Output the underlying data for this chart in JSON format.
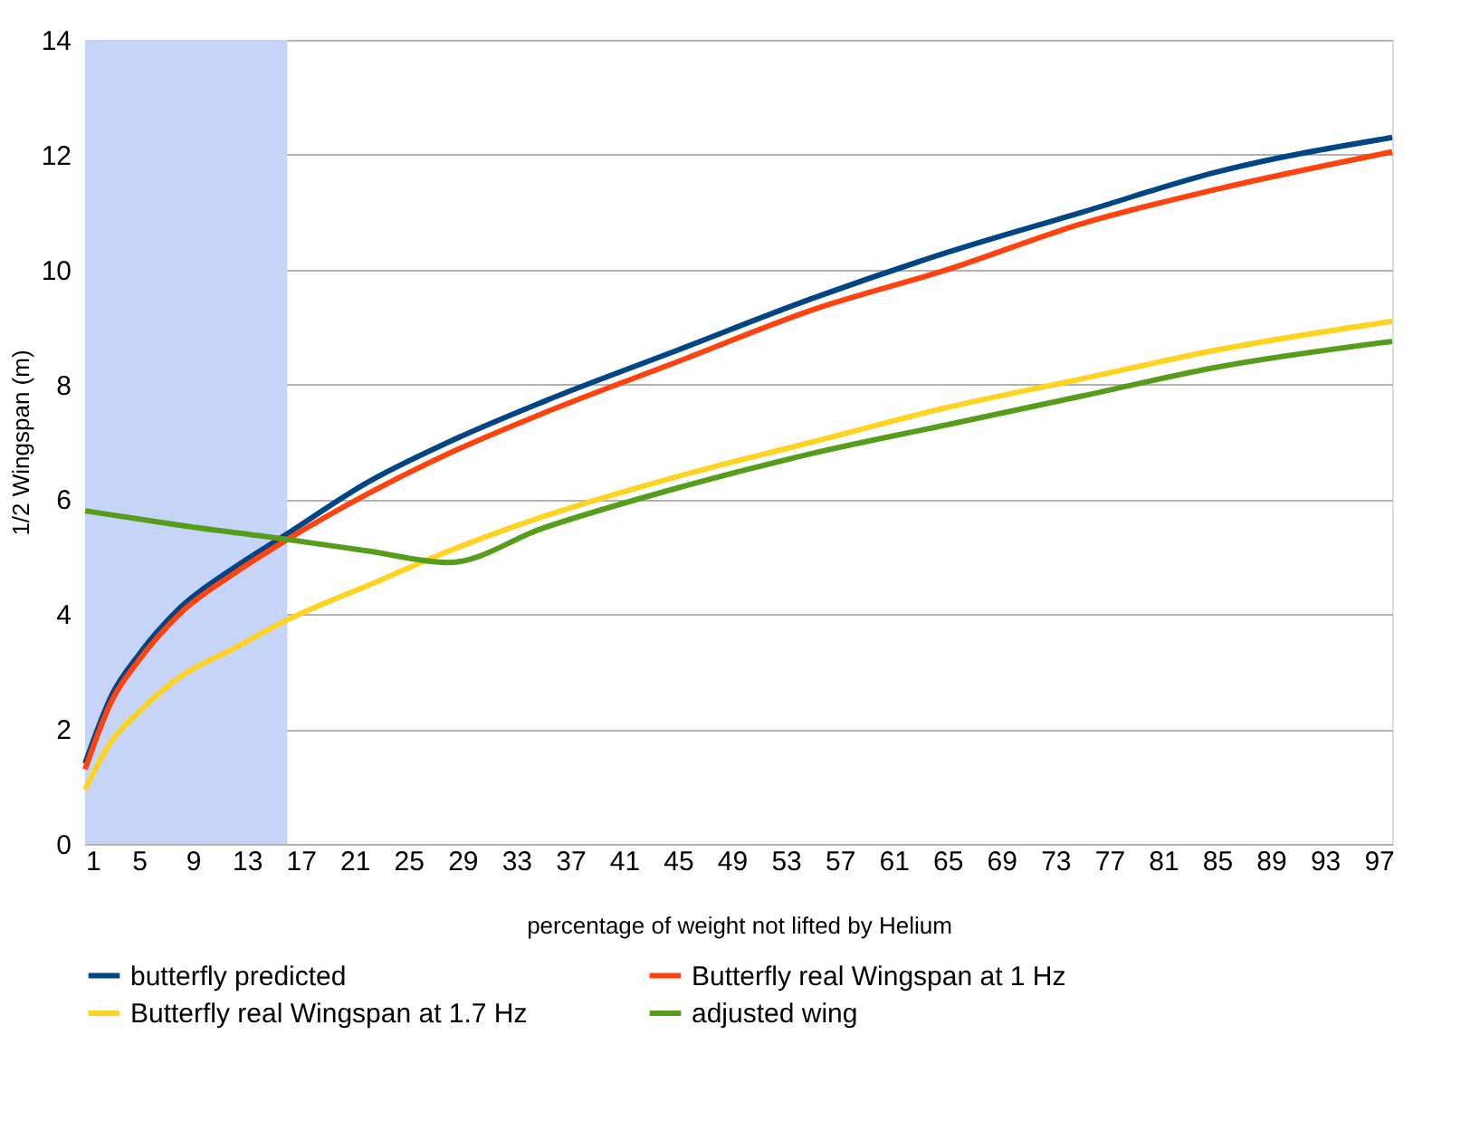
{
  "chart_data": {
    "type": "line",
    "xlabel": "percentage of weight not lifted by Helium",
    "ylabel": "1/2 Wingspan (m)",
    "xlim": [
      1,
      98
    ],
    "xticks": [
      1,
      5,
      9,
      13,
      17,
      21,
      25,
      29,
      33,
      37,
      41,
      45,
      49,
      53,
      57,
      61,
      65,
      69,
      73,
      77,
      81,
      85,
      89,
      93,
      97
    ],
    "ylim": [
      0,
      14
    ],
    "yticks": [
      0,
      2,
      4,
      6,
      8,
      10,
      12,
      14
    ],
    "grid": "y",
    "legend": "bottom",
    "marker": "none",
    "line_style": "solid",
    "bands": [
      {
        "axis": "x",
        "from": 1,
        "to": 16,
        "color": "#c6d4f8"
      }
    ],
    "series": [
      {
        "name": "butterfly predicted",
        "color": "#004586",
        "x": [
          1,
          3,
          5,
          8,
          12,
          16,
          22,
          28,
          35,
          45,
          55,
          65,
          75,
          85,
          98
        ],
        "values": [
          1.4,
          2.6,
          3.3,
          4.1,
          4.8,
          5.4,
          6.3,
          7.0,
          7.7,
          8.6,
          9.5,
          10.3,
          11.0,
          11.7,
          12.3
        ]
      },
      {
        "name": "Butterfly real Wingspan at 1 Hz",
        "color": "#ff420e",
        "x": [
          1,
          3,
          5,
          8,
          12,
          16,
          22,
          28,
          35,
          45,
          55,
          65,
          75,
          85,
          98
        ],
        "values": [
          1.3,
          2.5,
          3.2,
          4.0,
          4.7,
          5.3,
          6.1,
          6.8,
          7.5,
          8.4,
          9.3,
          10.0,
          10.8,
          11.4,
          12.05
        ]
      },
      {
        "name": "Butterfly real Wingspan at 1.7 Hz",
        "color": "#ffd320",
        "x": [
          1,
          3,
          5,
          8,
          12,
          16,
          22,
          28,
          35,
          45,
          55,
          65,
          75,
          85,
          98
        ],
        "values": [
          0.95,
          1.8,
          2.3,
          2.9,
          3.4,
          3.9,
          4.5,
          5.1,
          5.7,
          6.4,
          7.0,
          7.6,
          8.1,
          8.6,
          9.1
        ]
      },
      {
        "name": "adjusted wing",
        "color": "#579d1c",
        "x": [
          1,
          8,
          16,
          22,
          28,
          35,
          45,
          55,
          65,
          75,
          85,
          98
        ],
        "values": [
          5.8,
          5.55,
          5.3,
          5.1,
          4.9,
          5.5,
          6.2,
          6.8,
          7.3,
          7.8,
          8.3,
          8.75
        ]
      }
    ]
  }
}
